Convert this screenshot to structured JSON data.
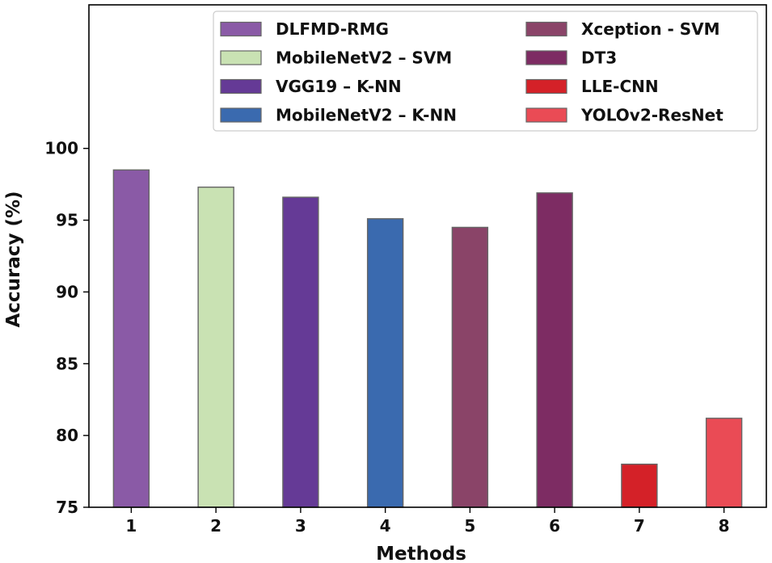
{
  "chart_data": {
    "type": "bar",
    "title": "",
    "xlabel": "Methods",
    "ylabel": "Accuracy (%)",
    "ylim": [
      75,
      110
    ],
    "yticks": [
      75,
      80,
      85,
      90,
      95,
      100
    ],
    "categories": [
      "1",
      "2",
      "3",
      "4",
      "5",
      "6",
      "7",
      "8"
    ],
    "values": [
      98.5,
      97.3,
      96.6,
      95.1,
      94.5,
      96.9,
      78.0,
      81.2
    ],
    "series_names": [
      "DLFMD-RMG",
      "MobileNetV2 – SVM",
      "VGG19 – K-NN",
      "MobileNetV2 – K-NN",
      "Xception - SVM",
      "DT3",
      "LLE-CNN",
      "YOLOv2-ResNet"
    ],
    "colors": [
      "#8a5aa6",
      "#c9e2b3",
      "#653a96",
      "#3a6aaf",
      "#8a4468",
      "#7d2c63",
      "#d42128",
      "#ea4b55"
    ],
    "legend_position": "top-right",
    "grid": false
  }
}
